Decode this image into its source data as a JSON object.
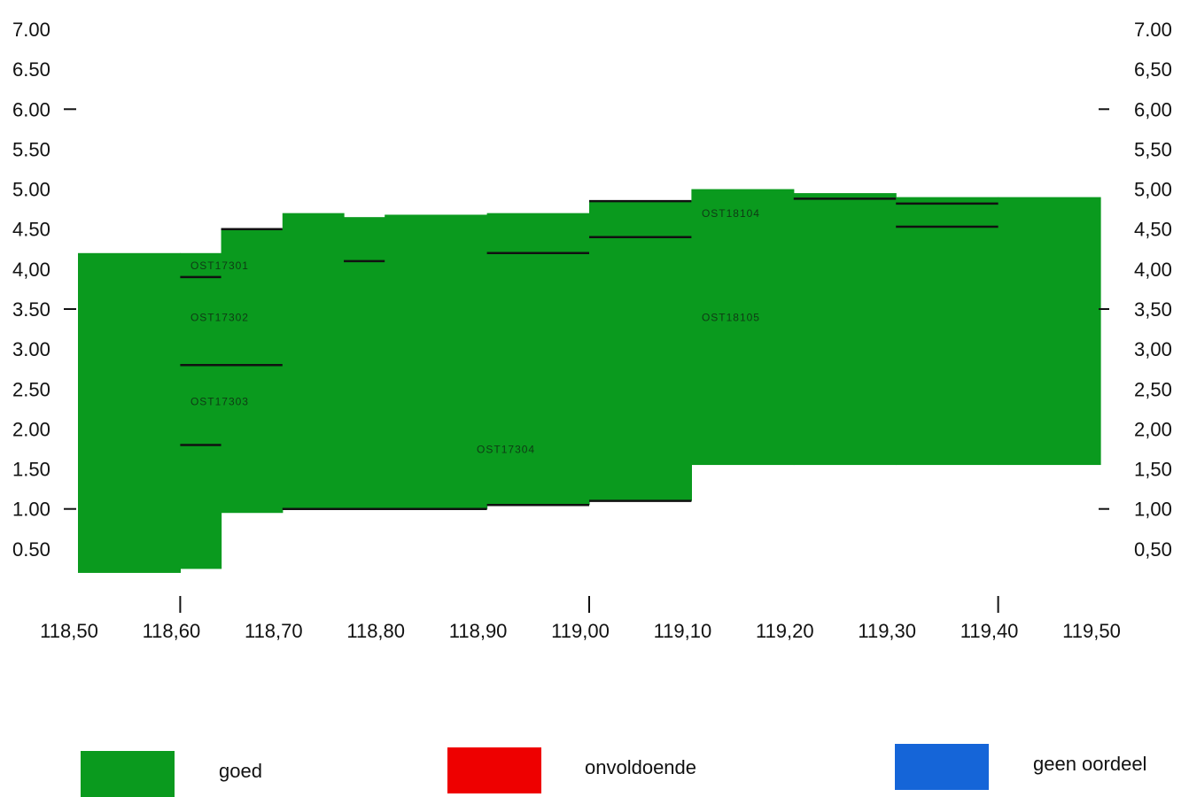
{
  "chart_data": {
    "type": "area",
    "x_ticks": [
      "118,50",
      "118,60",
      "118,70",
      "118,80",
      "118,90",
      "119,00",
      "119,10",
      "119,20",
      "119,30",
      "119,40",
      "119,50"
    ],
    "left_y_ticks": [
      "7.00",
      "6.50",
      "6.00",
      "5.50",
      "5.00",
      "4.50",
      "4,00",
      "3.50",
      "3.00",
      "2.50",
      "2.00",
      "1.50",
      "1.00",
      "0.50"
    ],
    "right_y_ticks": [
      "7.00",
      "6,50",
      "6,00",
      "5,50",
      "5,00",
      "4,50",
      "4,00",
      "3,50",
      "3,00",
      "2,50",
      "2,00",
      "1,50",
      "1,00",
      "0,50"
    ],
    "xlim": [
      118.5,
      119.5
    ],
    "ylim": [
      0,
      7
    ],
    "colors": {
      "goed": "#0a9a1e",
      "onvoldoende": "#ee0000",
      "geen_oordeel": "#1565d8"
    },
    "segments": [
      {
        "x0": 118.5,
        "x1": 118.6,
        "bottom": 0.2,
        "top": 4.2,
        "rating": "goed"
      },
      {
        "x0": 118.6,
        "x1": 118.64,
        "bottom": 0.25,
        "top": 4.2,
        "rating": "goed"
      },
      {
        "x0": 118.64,
        "x1": 118.7,
        "bottom": 0.95,
        "top": 4.5,
        "rating": "goed"
      },
      {
        "x0": 118.7,
        "x1": 118.76,
        "bottom": 1.0,
        "top": 4.7,
        "rating": "goed"
      },
      {
        "x0": 118.76,
        "x1": 118.8,
        "bottom": 1.0,
        "top": 4.65,
        "rating": "goed"
      },
      {
        "x0": 118.8,
        "x1": 118.9,
        "bottom": 1.0,
        "top": 4.68,
        "rating": "goed"
      },
      {
        "x0": 118.9,
        "x1": 119.0,
        "bottom": 1.05,
        "top": 4.7,
        "rating": "goed"
      },
      {
        "x0": 119.0,
        "x1": 119.1,
        "bottom": 1.1,
        "top": 4.85,
        "rating": "goed"
      },
      {
        "x0": 119.1,
        "x1": 119.2,
        "bottom": 1.55,
        "top": 5.0,
        "rating": "goed"
      },
      {
        "x0": 119.2,
        "x1": 119.3,
        "bottom": 1.55,
        "top": 4.95,
        "rating": "goed"
      },
      {
        "x0": 119.3,
        "x1": 119.4,
        "bottom": 1.55,
        "top": 4.9,
        "rating": "goed"
      },
      {
        "x0": 119.4,
        "x1": 119.5,
        "bottom": 1.55,
        "top": 4.9,
        "rating": "goed"
      }
    ],
    "lines": [
      {
        "x0": 118.64,
        "x1": 118.7,
        "y": 4.5
      },
      {
        "x0": 118.6,
        "x1": 118.64,
        "y": 3.9
      },
      {
        "x0": 118.6,
        "x1": 118.7,
        "y": 2.8
      },
      {
        "x0": 118.6,
        "x1": 118.64,
        "y": 1.8
      },
      {
        "x0": 118.76,
        "x1": 118.8,
        "y": 4.1
      },
      {
        "x0": 118.9,
        "x1": 119.0,
        "y": 4.2
      },
      {
        "x0": 119.0,
        "x1": 119.1,
        "y": 4.85
      },
      {
        "x0": 119.0,
        "x1": 119.1,
        "y": 4.4
      },
      {
        "x0": 119.2,
        "x1": 119.3,
        "y": 4.88
      },
      {
        "x0": 119.3,
        "x1": 119.4,
        "y": 4.82
      },
      {
        "x0": 119.3,
        "x1": 119.4,
        "y": 4.53
      },
      {
        "x0": 118.7,
        "x1": 118.9,
        "y": 1.0
      },
      {
        "x0": 118.9,
        "x1": 119.0,
        "y": 1.05
      },
      {
        "x0": 119.0,
        "x1": 119.1,
        "y": 1.1
      }
    ],
    "labels": [
      {
        "x": 118.61,
        "y": 4.0,
        "text": "OST17301"
      },
      {
        "x": 118.61,
        "y": 3.35,
        "text": "OST17302"
      },
      {
        "x": 118.61,
        "y": 2.3,
        "text": "OST17303"
      },
      {
        "x": 118.89,
        "y": 1.7,
        "text": "OST17304"
      },
      {
        "x": 119.11,
        "y": 4.65,
        "text": "OST18104"
      },
      {
        "x": 119.11,
        "y": 3.35,
        "text": "OST18105"
      }
    ]
  },
  "legend": [
    {
      "label": "goed",
      "color": "#0a9a1e"
    },
    {
      "label": "onvoldoende",
      "color": "#ee0000"
    },
    {
      "label": "geen oordeel",
      "color": "#1565d8"
    }
  ]
}
